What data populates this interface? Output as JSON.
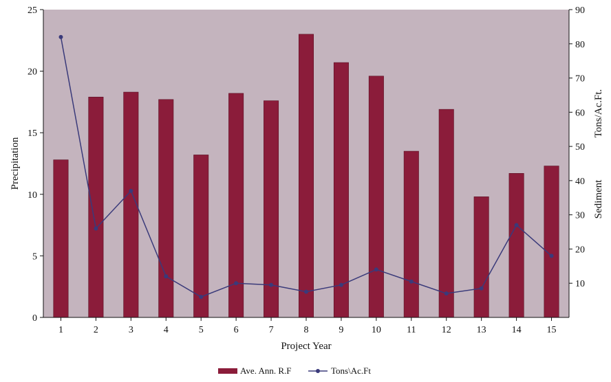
{
  "chart_data": {
    "type": "bar",
    "categories": [
      "1",
      "2",
      "3",
      "4",
      "5",
      "6",
      "7",
      "8",
      "9",
      "10",
      "11",
      "12",
      "13",
      "14",
      "15"
    ],
    "series": [
      {
        "name": "Ave. Ann. R.F",
        "kind": "bar",
        "axis": "left",
        "color": "#8B1C3A",
        "values": [
          12.8,
          17.9,
          18.3,
          17.7,
          13.2,
          18.2,
          17.6,
          23.0,
          20.7,
          19.6,
          13.5,
          16.9,
          9.8,
          11.7,
          12.3
        ]
      },
      {
        "name": "Tons\\Ac.Ft",
        "kind": "line",
        "axis": "right",
        "color": "#3A3A7A",
        "values": [
          82,
          26,
          37,
          12,
          6,
          10,
          9.5,
          7.5,
          9.5,
          14,
          10.5,
          7,
          8.5,
          27,
          18
        ]
      }
    ],
    "xlabel": "Project Year",
    "ylabel": "Precipitation",
    "y2label_top": "Tons/Ac.Ft.",
    "y2label_bottom": "Sediment",
    "ylim": [
      0,
      25
    ],
    "y2lim": [
      0,
      90
    ],
    "yticks": [
      "0",
      "5",
      "10",
      "15",
      "20",
      "25"
    ],
    "y2ticks": [
      "10",
      "20",
      "30",
      "40",
      "50",
      "60",
      "70",
      "80",
      "90"
    ],
    "plot_background": "#C4B4BE",
    "legend_position": "bottom-center",
    "grid": false
  }
}
